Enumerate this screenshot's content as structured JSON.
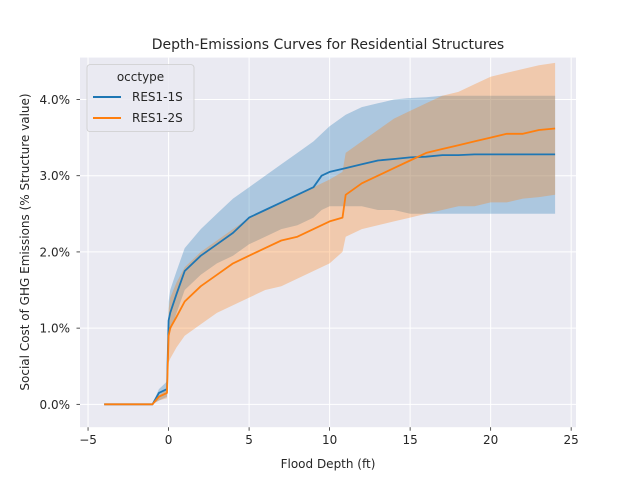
{
  "chart_data": {
    "type": "line",
    "title": "Depth-Emissions Curves for Residential Structures",
    "xlabel": "Flood Depth (ft)",
    "ylabel": "Social Cost of GHG Emissions (% Structure value)",
    "xlim": [
      -5.5,
      25.3
    ],
    "ylim": [
      -0.3,
      4.55
    ],
    "xticks": [
      -5,
      0,
      5,
      10,
      15,
      20,
      25
    ],
    "xtick_labels": [
      "−5",
      "0",
      "5",
      "10",
      "15",
      "20",
      "25"
    ],
    "yticks": [
      0,
      1,
      2,
      3,
      4
    ],
    "ytick_labels": [
      "0.0%",
      "1.0%",
      "2.0%",
      "3.0%",
      "4.0%"
    ],
    "grid": true,
    "legend": {
      "title": "occtype",
      "placement": "top-left"
    },
    "series": [
      {
        "name": "RES1-1S",
        "color": "#1f77b4",
        "x": [
          -4,
          -1,
          -0.6,
          -0.1,
          0,
          0.1,
          0.5,
          1,
          2,
          3,
          4,
          5,
          6,
          7,
          8,
          9,
          9.5,
          10,
          11,
          12,
          13,
          14,
          15,
          16,
          17,
          18,
          19,
          20,
          21,
          22,
          23,
          24
        ],
        "y": [
          0,
          0,
          0.15,
          0.2,
          1.1,
          1.2,
          1.45,
          1.75,
          1.95,
          2.1,
          2.25,
          2.45,
          2.55,
          2.65,
          2.75,
          2.85,
          3.0,
          3.05,
          3.1,
          3.15,
          3.2,
          3.22,
          3.24,
          3.25,
          3.27,
          3.27,
          3.28,
          3.28,
          3.28,
          3.28,
          3.28,
          3.28
        ],
        "lower": [
          0,
          0,
          0.05,
          0.1,
          0.85,
          0.95,
          1.2,
          1.5,
          1.7,
          1.85,
          1.95,
          2.1,
          2.2,
          2.3,
          2.35,
          2.45,
          2.55,
          2.6,
          2.6,
          2.6,
          2.55,
          2.55,
          2.5,
          2.5,
          2.5,
          2.5,
          2.5,
          2.5,
          2.5,
          2.5,
          2.5,
          2.5
        ],
        "upper": [
          0,
          0,
          0.2,
          0.3,
          1.35,
          1.5,
          1.75,
          2.05,
          2.3,
          2.5,
          2.7,
          2.85,
          3.0,
          3.15,
          3.3,
          3.45,
          3.55,
          3.65,
          3.8,
          3.9,
          3.95,
          4.0,
          4.02,
          4.03,
          4.05,
          4.05,
          4.05,
          4.05,
          4.05,
          4.05,
          4.05,
          4.05
        ]
      },
      {
        "name": "RES1-2S",
        "color": "#ff7f0e",
        "x": [
          -4,
          -1,
          -0.6,
          -0.1,
          0,
          0.1,
          0.5,
          1,
          2,
          3,
          4,
          5,
          6,
          7,
          8,
          9,
          10,
          10.8,
          11,
          12,
          13,
          14,
          15,
          16,
          17,
          18,
          19,
          20,
          21,
          22,
          23,
          24
        ],
        "y": [
          0,
          0,
          0.1,
          0.15,
          0.9,
          1.0,
          1.15,
          1.35,
          1.55,
          1.7,
          1.85,
          1.95,
          2.05,
          2.15,
          2.2,
          2.3,
          2.4,
          2.45,
          2.75,
          2.9,
          3.0,
          3.1,
          3.2,
          3.3,
          3.35,
          3.4,
          3.45,
          3.5,
          3.55,
          3.55,
          3.6,
          3.62
        ],
        "lower": [
          0,
          0,
          0.05,
          0.08,
          0.55,
          0.6,
          0.75,
          0.9,
          1.05,
          1.2,
          1.3,
          1.4,
          1.5,
          1.55,
          1.65,
          1.75,
          1.85,
          2.0,
          2.2,
          2.3,
          2.35,
          2.4,
          2.45,
          2.5,
          2.55,
          2.6,
          2.6,
          2.65,
          2.65,
          2.7,
          2.72,
          2.75
        ],
        "upper": [
          0,
          0,
          0.12,
          0.2,
          1.25,
          1.4,
          1.6,
          1.8,
          2.0,
          2.15,
          2.3,
          2.45,
          2.55,
          2.65,
          2.75,
          2.85,
          2.95,
          3.05,
          3.3,
          3.45,
          3.6,
          3.75,
          3.85,
          3.95,
          4.05,
          4.1,
          4.2,
          4.3,
          4.35,
          4.4,
          4.45,
          4.48
        ]
      }
    ]
  }
}
